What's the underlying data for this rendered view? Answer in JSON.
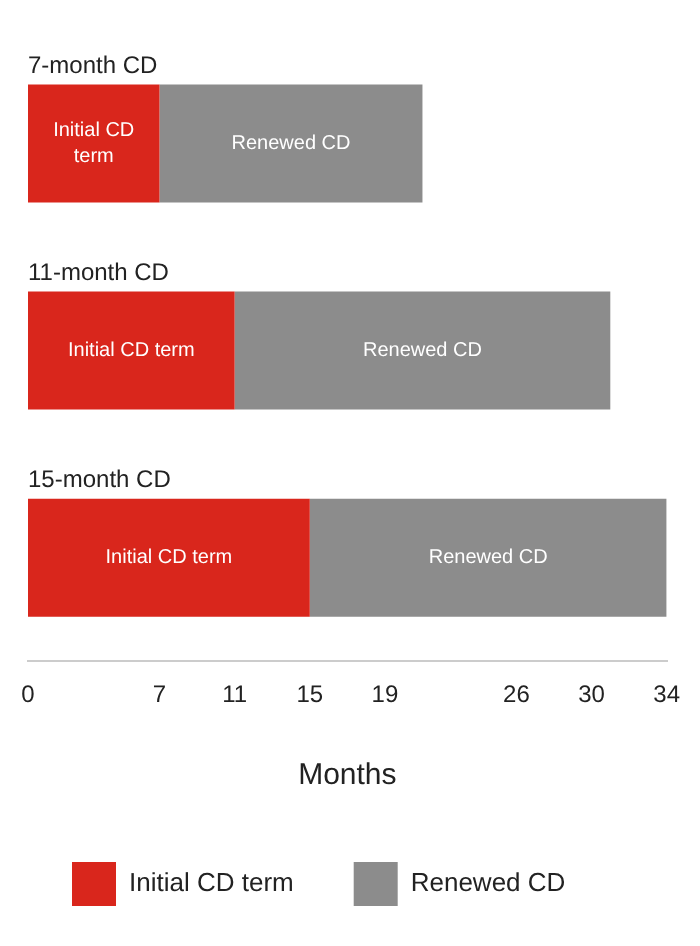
{
  "chart_data": {
    "type": "bar",
    "orientation": "horizontal",
    "stacked": true,
    "xlabel": "Months",
    "categories": [
      "7-month CD",
      "11-month CD",
      "15-month CD"
    ],
    "series": [
      {
        "name": "Initial CD term",
        "color": "#d9261c",
        "values": [
          7,
          11,
          15
        ]
      },
      {
        "name": "Renewed CD",
        "color": "#8c8c8c",
        "values": [
          14,
          20,
          19
        ]
      }
    ],
    "xlim": [
      0,
      34
    ],
    "xticks": [
      0,
      7,
      11,
      15,
      19,
      26,
      30,
      34
    ],
    "grid": false,
    "legend": "bottom",
    "tick_labels": "x"
  }
}
